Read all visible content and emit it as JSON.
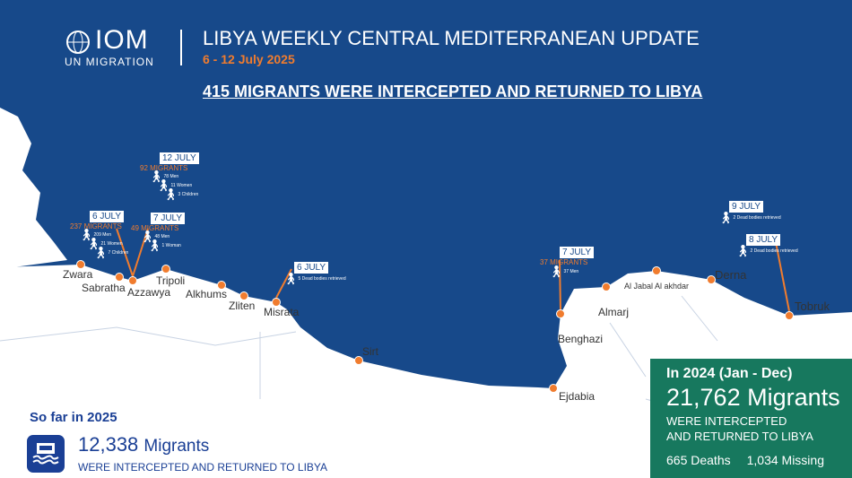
{
  "header": {
    "logo_main": "IOM",
    "logo_sub": "UN MIGRATION",
    "title": "LIBYA WEEKLY CENTRAL MEDITERRANEAN UPDATE",
    "dates": "6 - 12 July 2025",
    "headline": "415 MIGRANTS WERE INTERCEPTED AND RETURNED TO LIBYA"
  },
  "colors": {
    "sea": "#17498a",
    "land": "#ffffff",
    "accent": "#f07c2e",
    "panel_green": "#17785e",
    "panel_blue": "#1a3f95"
  },
  "events": [
    {
      "date": "12 JULY",
      "migrants": "92 MIGRANTS",
      "lines": [
        "78 Men",
        "11 Women",
        "3 Children"
      ]
    },
    {
      "date": "6 JULY",
      "migrants": "237 MIGRANTS",
      "lines": [
        "209 Men",
        "21 Women",
        "7 Children"
      ]
    },
    {
      "date": "7 JULY",
      "migrants": "49 MIGRANTS",
      "lines": [
        "48 Men",
        "1 Woman"
      ]
    },
    {
      "date": "6 JULY",
      "lines": [
        "5 Dead bodies retrieved"
      ]
    },
    {
      "date": "7 JULY",
      "migrants": "37 MIGRANTS",
      "lines": [
        "37 Men"
      ]
    },
    {
      "date": "9 JULY",
      "lines": [
        "2 Dead bodies retrieved"
      ]
    },
    {
      "date": "8 JULY",
      "lines": [
        "2 Dead bodies retrieved"
      ]
    }
  ],
  "cities": [
    "Zwara",
    "Sabratha",
    "Azzawya",
    "Tripoli",
    "Alkhums",
    "Zliten",
    "Misrata",
    "Sirt",
    "Ejdabia",
    "Benghazi",
    "Almarj",
    "Al Jabal Al akhdar",
    "Derna",
    "Tobruk"
  ],
  "summary_2025": {
    "label": "So far in 2025",
    "count": "12,338",
    "unit": "Migrants",
    "text": "WERE INTERCEPTED AND RETURNED TO LIBYA",
    "icon": "boat-icon"
  },
  "summary_2024": {
    "label": "In 2024 (Jan - Dec)",
    "count": "21,762 Migrants",
    "text1": "WERE INTERCEPTED",
    "text2": "AND RETURNED TO LIBYA",
    "deaths": "665 Deaths",
    "missing": "1,034 Missing"
  }
}
